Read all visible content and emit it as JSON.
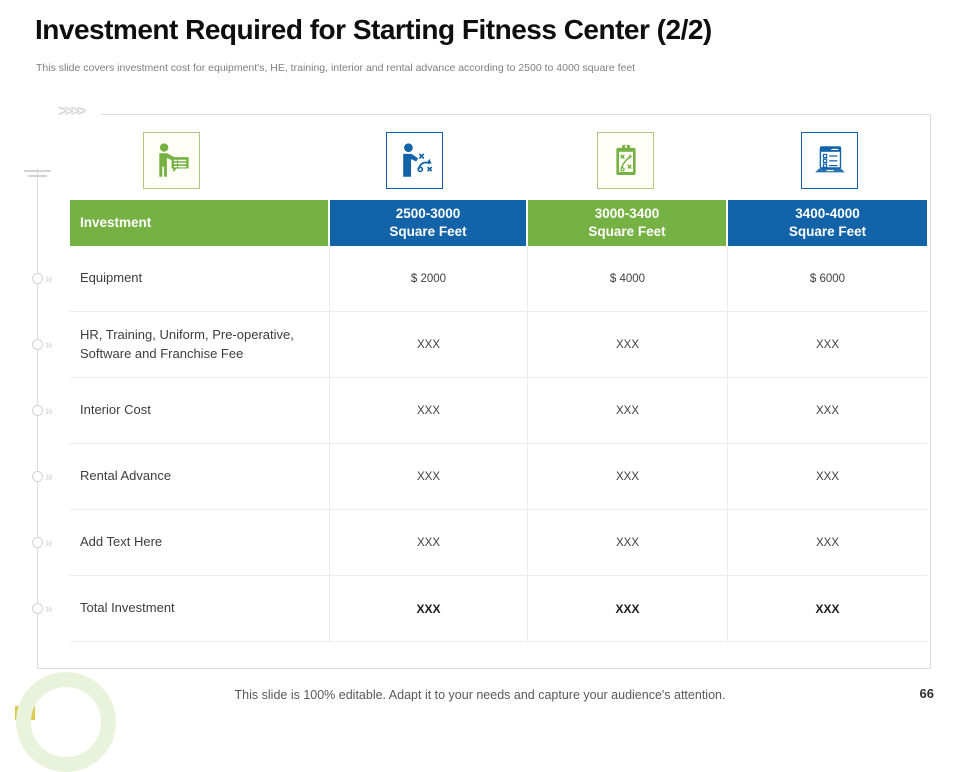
{
  "slide": {
    "title": "Investment Required for Starting Fitness Center (2/2)",
    "subtitle": "This slide covers investment cost for equipment's, HE, training, interior and rental advance according to 2500 to 4000 square feet",
    "footer": "This slide is 100% editable. Adapt it to your needs and capture your audience's attention.",
    "page_number": "66",
    "top_chevrons": ">>>>"
  },
  "colors": {
    "green": "#76b243",
    "blue": "#1263a7",
    "grid_line": "#ececec",
    "frame_line": "#dcdcdc",
    "ring_green": "#e9f3db",
    "accent_yellow": "#ddc84e"
  },
  "icons": [
    {
      "name": "person-checklist-icon",
      "color": "green"
    },
    {
      "name": "person-strategy-icon",
      "color": "blue"
    },
    {
      "name": "clipboard-strategy-icon",
      "color": "green"
    },
    {
      "name": "laptop-checklist-icon",
      "color": "blue"
    }
  ],
  "table": {
    "columns": [
      {
        "label": "Investment",
        "line2": "",
        "color": "green"
      },
      {
        "label": "2500-3000",
        "line2": "Square Feet",
        "color": "blue"
      },
      {
        "label": "3000-3400",
        "line2": "Square Feet",
        "color": "green"
      },
      {
        "label": "3400-4000",
        "line2": "Square Feet",
        "color": "blue"
      }
    ],
    "rows": [
      {
        "label": "Equipment",
        "values": [
          "$ 2000",
          "$ 4000",
          "$ 6000"
        ],
        "bold": false
      },
      {
        "label": "HR, Training, Uniform, Pre-operative, Software and Franchise Fee",
        "values": [
          "XXX",
          "XXX",
          "XXX"
        ],
        "bold": false
      },
      {
        "label": "Interior Cost",
        "values": [
          "XXX",
          "XXX",
          "XXX"
        ],
        "bold": false
      },
      {
        "label": "Rental Advance",
        "values": [
          "XXX",
          "XXX",
          "XXX"
        ],
        "bold": false
      },
      {
        "label": "Add Text Here",
        "values": [
          "XXX",
          "XXX",
          "XXX"
        ],
        "bold": false
      },
      {
        "label": "Total Investment",
        "values": [
          "XXX",
          "XXX",
          "XXX"
        ],
        "bold": true
      }
    ]
  }
}
